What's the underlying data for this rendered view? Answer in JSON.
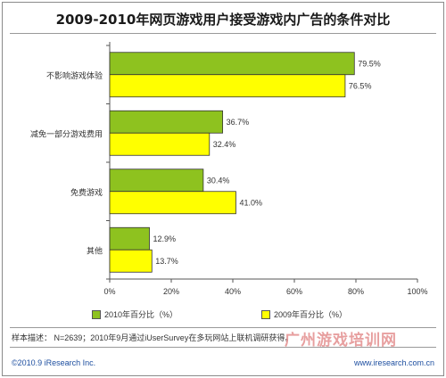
{
  "title": "2009-2010年网页游戏用户接受游戏内广告的条件对比",
  "legend": {
    "series_2010": "2010年百分比（%）",
    "series_2009": "2009年百分比（%）"
  },
  "note": "样本描述： N=2639；2010年9月通过iUserSurvey在多玩网站上联机调研获得。",
  "footer": {
    "copyright": "©2010.9 iResearch Inc.",
    "url": "www.iresearch.com.cn"
  },
  "watermark": "广州游戏培训网",
  "colors": {
    "series_2010": "#8ec21f",
    "series_2009": "#ffff00",
    "bar_border": "#333333"
  },
  "chart_data": {
    "type": "bar",
    "orientation": "horizontal",
    "title": "2009-2010年网页游戏用户接受游戏内广告的条件对比",
    "categories": [
      "不影响游戏体验",
      "减免一部分游戏费用",
      "免费游戏",
      "其他"
    ],
    "series": [
      {
        "name": "2010年百分比（%）",
        "values": [
          79.5,
          36.7,
          30.4,
          12.9
        ]
      },
      {
        "name": "2009年百分比（%）",
        "values": [
          76.5,
          32.4,
          41.0,
          13.7
        ]
      }
    ],
    "value_labels": [
      [
        "79.5%",
        "36.7%",
        "30.4%",
        "12.9%"
      ],
      [
        "76.5%",
        "32.4%",
        "41.0%",
        "13.7%"
      ]
    ],
    "xlim": [
      0,
      100
    ],
    "xticks": [
      "0%",
      "20%",
      "40%",
      "60%",
      "80%",
      "100%"
    ],
    "grid": false,
    "legend_position": "bottom"
  }
}
